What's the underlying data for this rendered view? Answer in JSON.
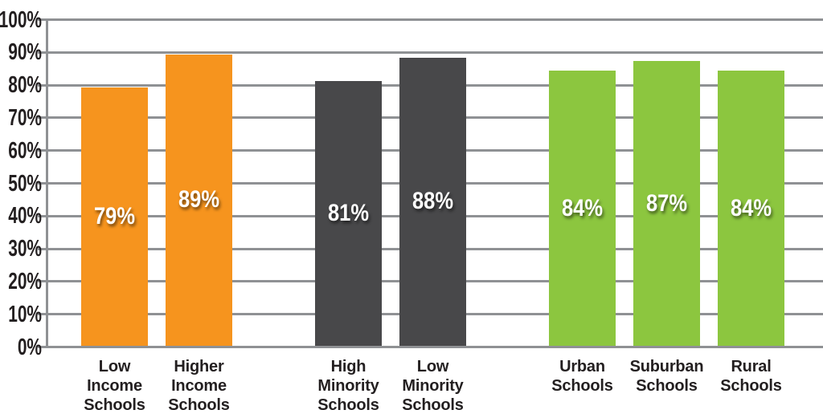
{
  "chart_data": {
    "type": "bar",
    "title": "",
    "xlabel": "",
    "ylabel": "",
    "ylim": [
      0,
      100
    ],
    "grid": true,
    "legend_position": "none",
    "y_ticks": [
      "100%",
      "90%",
      "80%",
      "70%",
      "60%",
      "50%",
      "40%",
      "30%",
      "20%",
      "10%",
      "0%"
    ],
    "groups": [
      {
        "name": "income",
        "color": "#F6941E",
        "bars": [
          {
            "label": "Low\nIncome\nSchools",
            "value": 79,
            "value_label": "79%"
          },
          {
            "label": "Higher\nIncome\nSchools",
            "value": 89,
            "value_label": "89%"
          }
        ]
      },
      {
        "name": "minority",
        "color": "#48484A",
        "bars": [
          {
            "label": "High\nMinority\nSchools",
            "value": 81,
            "value_label": "81%"
          },
          {
            "label": "Low\nMinority\nSchools",
            "value": 88,
            "value_label": "88%"
          }
        ]
      },
      {
        "name": "locale",
        "color": "#8CC63F",
        "bars": [
          {
            "label": "Urban\nSchools",
            "value": 84,
            "value_label": "84%"
          },
          {
            "label": "Suburban\nSchools",
            "value": 87,
            "value_label": "87%"
          },
          {
            "label": "Rural\nSchools",
            "value": 84,
            "value_label": "84%"
          }
        ]
      }
    ],
    "colors": {
      "grid": "#8F9194",
      "axis_text": "#231F20",
      "value_text": "#FFFFFF",
      "orange": "#F6941E",
      "dark_gray": "#48484A",
      "green": "#8CC63F"
    }
  }
}
